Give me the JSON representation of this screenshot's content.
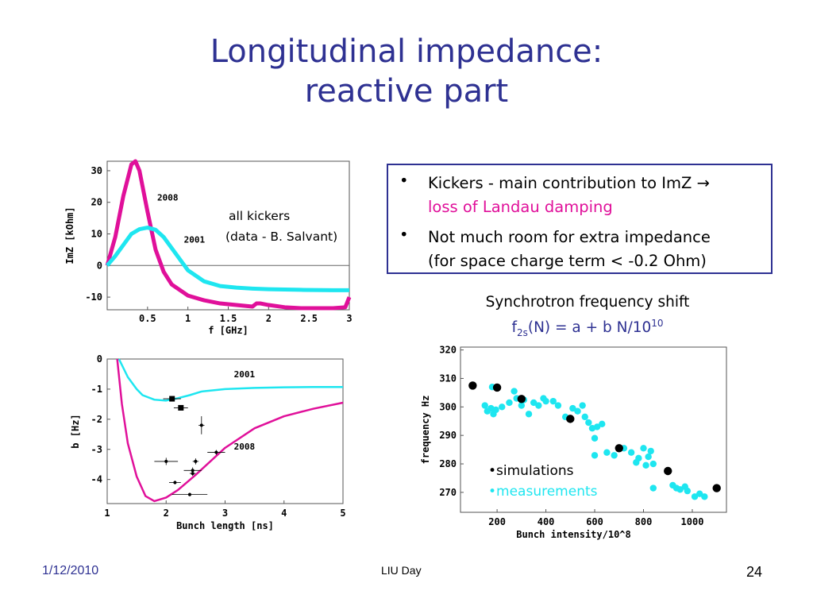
{
  "slide": {
    "title_line1": "Longitudinal impedance:",
    "title_line2": "reactive part",
    "bullets": [
      {
        "text_a": "Kickers - main contribution to ImZ →",
        "text_b": "loss of Landau damping"
      },
      {
        "text_a": "Not much room for extra impedance",
        "text_b": "(for space charge term < -0.2 Ohm)"
      }
    ],
    "bullet_char": "•",
    "synch_line1": "Synchrotron frequency shift",
    "synch_formula_a": "f",
    "synch_formula_sub": "2s",
    "synch_formula_b": "(N) = a + b N/10",
    "synch_formula_sup": "10",
    "footer_date": "1/12/2010",
    "footer_center": "LIU Day",
    "footer_page": "24",
    "colors": {
      "title": "#2e3192",
      "magenta": "#e0109a",
      "cyan": "#1ee6f0"
    }
  },
  "chart_data": [
    {
      "type": "line",
      "xlabel": "f [GHz]",
      "ylabel": "ImZ [kOhm]",
      "xlim": [
        0,
        3
      ],
      "ylim": [
        -14,
        33
      ],
      "xticks": [
        "0.5",
        "1",
        "1.5",
        "2",
        "2.5",
        "3"
      ],
      "yticks": [
        "30",
        "20",
        "10",
        "0",
        "-10"
      ],
      "annotation_line1": "all kickers",
      "annotation_line2": "(data - B. Salvant)",
      "series": [
        {
          "name": "2008",
          "color": "#e0109a",
          "x": [
            0,
            0.1,
            0.2,
            0.3,
            0.35,
            0.4,
            0.5,
            0.6,
            0.7,
            0.8,
            1.0,
            1.2,
            1.4,
            1.6,
            1.8,
            1.85,
            1.9,
            2.0,
            2.2,
            2.4,
            2.6,
            2.8,
            2.95,
            3.0
          ],
          "y": [
            0,
            9,
            22,
            32,
            33,
            30,
            17,
            5,
            -2,
            -6,
            -9.5,
            -11,
            -12,
            -12.5,
            -13,
            -12,
            -12,
            -12.5,
            -13.2,
            -13.5,
            -13.5,
            -13.5,
            -13.2,
            -10
          ]
        },
        {
          "name": "2001",
          "color": "#1ee6f0",
          "x": [
            0,
            0.1,
            0.2,
            0.3,
            0.4,
            0.5,
            0.6,
            0.7,
            0.8,
            0.9,
            1.0,
            1.2,
            1.4,
            1.6,
            1.8,
            2.0,
            2.4,
            2.8,
            3.0
          ],
          "y": [
            0,
            3,
            6.5,
            10,
            11.5,
            12,
            11.3,
            9,
            5.5,
            2,
            -1.5,
            -5,
            -6.5,
            -7,
            -7.3,
            -7.5,
            -7.7,
            -7.8,
            -7.8
          ]
        }
      ]
    },
    {
      "type": "line",
      "xlabel": "Bunch length [ns]",
      "ylabel": "b [Hz]",
      "xlim": [
        1,
        5
      ],
      "ylim": [
        -4.8,
        0
      ],
      "xticks": [
        "1",
        "2",
        "3",
        "4",
        "5"
      ],
      "yticks": [
        "0",
        "-1",
        "-2",
        "-3",
        "-4"
      ],
      "series": [
        {
          "name": "2001",
          "color": "#1ee6f0",
          "x": [
            1.2,
            1.35,
            1.5,
            1.6,
            1.8,
            2.0,
            2.2,
            2.4,
            2.6,
            3.0,
            3.5,
            4.0,
            4.5,
            5.0
          ],
          "y": [
            0,
            -0.6,
            -1.0,
            -1.2,
            -1.35,
            -1.38,
            -1.3,
            -1.2,
            -1.08,
            -1.0,
            -0.96,
            -0.94,
            -0.93,
            -0.93
          ]
        },
        {
          "name": "2008",
          "color": "#e0109a",
          "x": [
            1.17,
            1.25,
            1.35,
            1.5,
            1.65,
            1.8,
            2.0,
            2.2,
            2.5,
            3.0,
            3.5,
            4.0,
            4.5,
            5.0
          ],
          "y": [
            0,
            -1.5,
            -2.8,
            -3.9,
            -4.55,
            -4.72,
            -4.6,
            -4.35,
            -3.85,
            -2.95,
            -2.3,
            -1.9,
            -1.65,
            -1.45
          ]
        }
      ],
      "measurements": [
        {
          "x": 2.1,
          "y": -1.32,
          "ex": 0.15,
          "ey": 0.05,
          "big": true
        },
        {
          "x": 2.25,
          "y": -1.62,
          "ex": 0.12,
          "ey": 0.05,
          "big": true
        },
        {
          "x": 2.6,
          "y": -2.2,
          "ex": 0.05,
          "ey": 0.3,
          "big": false
        },
        {
          "x": 2.0,
          "y": -3.4,
          "ex": 0.2,
          "ey": 0.12,
          "big": false
        },
        {
          "x": 2.85,
          "y": -3.1,
          "ex": 0.15,
          "ey": 0.08,
          "big": false
        },
        {
          "x": 2.5,
          "y": -3.4,
          "ex": 0.05,
          "ey": 0.1,
          "big": false
        },
        {
          "x": 2.45,
          "y": -3.7,
          "ex": 0.15,
          "ey": 0.1,
          "big": false
        },
        {
          "x": 2.45,
          "y": -3.8,
          "ex": 0.05,
          "ey": 0.08,
          "big": false
        },
        {
          "x": 2.15,
          "y": -4.1,
          "ex": 0.1,
          "ey": 0.06,
          "big": false
        },
        {
          "x": 2.4,
          "y": -4.5,
          "ex": 0.3,
          "ey": 0.06,
          "big": false
        }
      ]
    },
    {
      "type": "scatter",
      "xlabel": "Bunch intensity/10^8",
      "ylabel": "frequency Hz",
      "xlim": [
        50,
        1140
      ],
      "ylim": [
        263,
        321
      ],
      "xticks": [
        "200",
        "400",
        "600",
        "800",
        "1000"
      ],
      "yticks": [
        "320",
        "310",
        "300",
        "290",
        "280",
        "270"
      ],
      "legend_sim": "•simulations",
      "legend_meas": "•measurements",
      "simulations": [
        [
          100,
          307.5
        ],
        [
          200,
          306.8
        ],
        [
          300,
          302.8
        ],
        [
          500,
          295.8
        ],
        [
          700,
          285.5
        ],
        [
          900,
          277.5
        ],
        [
          1100,
          271.5
        ]
      ],
      "measurements": [
        [
          150,
          300.5
        ],
        [
          160,
          298.5
        ],
        [
          175,
          299.5
        ],
        [
          185,
          297.5
        ],
        [
          195,
          299
        ],
        [
          180,
          307
        ],
        [
          220,
          300
        ],
        [
          250,
          301.5
        ],
        [
          270,
          305.5
        ],
        [
          280,
          303
        ],
        [
          300,
          300.5
        ],
        [
          310,
          302.5
        ],
        [
          330,
          297.5
        ],
        [
          350,
          301.5
        ],
        [
          370,
          300.5
        ],
        [
          390,
          303
        ],
        [
          400,
          302
        ],
        [
          430,
          302
        ],
        [
          450,
          300.5
        ],
        [
          480,
          296.5
        ],
        [
          510,
          299.5
        ],
        [
          530,
          298.5
        ],
        [
          550,
          300.5
        ],
        [
          560,
          296.5
        ],
        [
          575,
          294.5
        ],
        [
          590,
          292.5
        ],
        [
          600,
          289
        ],
        [
          600,
          283
        ],
        [
          610,
          293
        ],
        [
          630,
          294
        ],
        [
          650,
          284
        ],
        [
          680,
          283
        ],
        [
          720,
          285.5
        ],
        [
          750,
          284
        ],
        [
          770,
          280.5
        ],
        [
          780,
          282
        ],
        [
          800,
          285.5
        ],
        [
          810,
          279.5
        ],
        [
          820,
          282.5
        ],
        [
          830,
          284.5
        ],
        [
          840,
          280
        ],
        [
          840,
          271.5
        ],
        [
          920,
          272.5
        ],
        [
          935,
          271.5
        ],
        [
          950,
          271
        ],
        [
          970,
          272
        ],
        [
          980,
          270.5
        ],
        [
          1010,
          268.5
        ],
        [
          1030,
          269.5
        ],
        [
          1050,
          268.5
        ]
      ]
    }
  ]
}
